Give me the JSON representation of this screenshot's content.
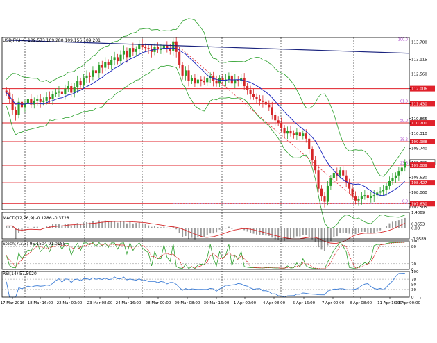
{
  "symbol_header": "USDJPY,H4",
  "ohlc_values": "109.573 109.280 109.156 109.201",
  "colors": {
    "bull": "#2ca02c",
    "bear": "#d62728",
    "hline": "#e0202a",
    "trendline": "#1a237e",
    "bollinger": "#2ca02c",
    "ma": "#1f2bbf",
    "fib_label": "#aa44cc",
    "macd_line": "#d62728",
    "macd_hist": "#9a9a9a",
    "stoch_main": "#2ca02c",
    "stoch_signal": "#d62728",
    "rsi": "#3a7bd5",
    "grid": "#000000"
  },
  "price_panel": {
    "y_ticks": [
      "113.780",
      "113.115",
      "112.560",
      "112.006",
      "111.430",
      "110.865",
      "110.700",
      "110.310",
      "109.988",
      "109.740",
      "109.201",
      "109.089",
      "108.630",
      "108.427",
      "108.060",
      "107.630",
      "107.505"
    ],
    "fib_labels": [
      "100.0",
      "61.8",
      "50.0",
      "38.2",
      "23.6",
      "0.0"
    ],
    "tagged_levels": [
      "112.006",
      "111.430",
      "110.700",
      "109.988",
      "109.089",
      "108.427",
      "107.630"
    ]
  },
  "macd_panel": {
    "label": "MACD(12,26,9) -0.1286 -0.3728",
    "y_ticks": [
      "1.4069",
      "0.3653",
      "0.00",
      "-0.9589"
    ]
  },
  "stoch_panel": {
    "label": "Stoch(7,3,3) 95.1504 91.0185",
    "y_ticks": [
      "100",
      "80",
      "20",
      "0"
    ]
  },
  "rsi_panel": {
    "label": "RSI(14) 57.5920",
    "y_ticks": [
      "100",
      "70",
      "50",
      "30",
      "0"
    ]
  },
  "x_labels": [
    "17 Mar 2016",
    "18 Mar 16:00",
    "22 Mar 00:00",
    "23 Mar 08:00",
    "24 Mar 16:00",
    "28 Mar 00:00",
    "29 Mar 08:00",
    "30 Mar 16:00",
    "1 Apr 00:00",
    "4 Apr 08:00",
    "5 Apr 16:00",
    "7 Apr 00:00",
    "8 Apr 08:00",
    "11 Apr 16:00",
    "13 Apr 00:00"
  ],
  "chart_data": {
    "type": "candlestick",
    "title": "USDJPY,H4",
    "ylim": [
      107.4,
      113.95
    ],
    "horizontal_levels": [
      112.006,
      111.43,
      110.7,
      109.988,
      109.089,
      108.427,
      107.63
    ],
    "trendline": {
      "start": [
        0,
        113.85
      ],
      "end": [
        144,
        113.35
      ]
    },
    "fib_retracement": {
      "high": 113.78,
      "low": 107.63,
      "levels": [
        {
          "ratio": "100.0",
          "price": 113.78
        },
        {
          "ratio": "61.8",
          "price": 111.43
        },
        {
          "ratio": "50.0",
          "price": 110.7
        },
        {
          "ratio": "38.2",
          "price": 109.98
        },
        {
          "ratio": "23.6",
          "price": 109.08
        },
        {
          "ratio": "0.0",
          "price": 107.63
        }
      ]
    },
    "closes": [
      111.85,
      111.6,
      111.2,
      111.0,
      111.5,
      111.3,
      111.45,
      111.6,
      111.4,
      111.55,
      111.6,
      111.5,
      111.55,
      111.7,
      111.6,
      111.8,
      111.85,
      111.9,
      111.8,
      112.0,
      112.1,
      111.85,
      112.05,
      112.3,
      112.15,
      112.4,
      112.5,
      112.45,
      112.7,
      112.6,
      112.9,
      112.8,
      113.0,
      112.9,
      113.1,
      113.2,
      113.05,
      113.3,
      113.45,
      113.2,
      113.55,
      113.4,
      113.5,
      113.7,
      113.6,
      113.55,
      113.5,
      113.4,
      113.6,
      113.5,
      113.5,
      113.65,
      113.5,
      113.45,
      113.8,
      113.4,
      112.9,
      112.5,
      112.7,
      112.3,
      112.4,
      112.2,
      112.35,
      112.3,
      112.25,
      112.4,
      112.5,
      112.3,
      112.2,
      112.4,
      112.3,
      112.35,
      112.5,
      112.2,
      112.35,
      112.3,
      112.4,
      112.1,
      111.95,
      111.8,
      111.7,
      111.6,
      111.55,
      111.5,
      111.4,
      111.3,
      111.0,
      110.8,
      110.7,
      110.5,
      110.3,
      110.4,
      110.3,
      110.25,
      110.35,
      110.2,
      110.3,
      110.1,
      109.7,
      109.3,
      108.9,
      108.2,
      107.9,
      107.7,
      108.3,
      108.6,
      108.8,
      108.7,
      108.9,
      108.7,
      108.45,
      108.2,
      107.9,
      107.75,
      107.8,
      107.9,
      107.95,
      107.85,
      107.9,
      107.95,
      108.05,
      108.1,
      108.15,
      108.3,
      108.5,
      108.6,
      108.7,
      108.85,
      109.0,
      109.2
    ]
  }
}
